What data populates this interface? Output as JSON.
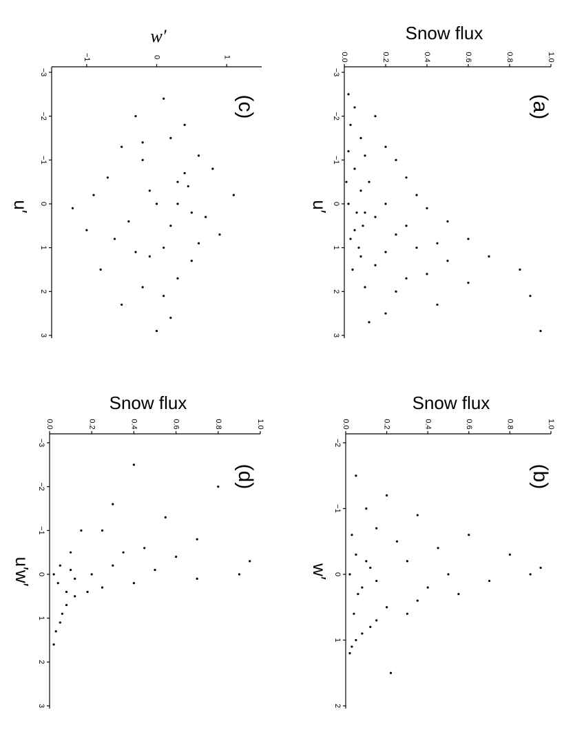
{
  "chart_data": [
    {
      "type": "scatter",
      "panel": "(a)",
      "x_label": "u′",
      "y_label": "Snow flux",
      "color": "#000000",
      "x": [
        -2.5,
        -2.2,
        -2,
        -1.8,
        -1.5,
        -1.3,
        -1.1,
        -1,
        -0.8,
        -0.6,
        -0.5,
        -0.3,
        -0.2,
        0,
        0,
        0.1,
        0.2,
        0.3,
        0.4,
        0.5,
        0.6,
        0.7,
        0.8,
        0.9,
        1,
        1.1,
        1.2,
        1.3,
        1.4,
        1.5,
        1.6,
        1.7,
        1.8,
        1.9,
        2,
        2.1,
        2.3,
        2.5,
        2.7,
        2.9,
        -0.5,
        0.2,
        0.8,
        1.2,
        1.5,
        -1.2,
        0.5,
        1.0
      ],
      "y": [
        0.02,
        0.05,
        0.15,
        0.03,
        0.08,
        0.2,
        0.1,
        0.25,
        0.05,
        0.3,
        0.12,
        0.08,
        0.35,
        0.02,
        0.2,
        0.4,
        0.1,
        0.15,
        0.5,
        0.3,
        0.05,
        0.25,
        0.6,
        0.45,
        0.35,
        0.2,
        0.7,
        0.5,
        0.15,
        0.85,
        0.4,
        0.3,
        0.6,
        0.1,
        0.25,
        0.9,
        0.45,
        0.2,
        0.12,
        0.95,
        0.01,
        0.06,
        0.03,
        0.08,
        0.04,
        0.02,
        0.09,
        0.07
      ],
      "xlim": [
        -3,
        3
      ],
      "ylim": [
        0,
        1
      ],
      "xticks": [
        {
          "value": -3,
          "label": "−3"
        },
        {
          "value": -2,
          "label": "−2"
        },
        {
          "value": -1,
          "label": "−1"
        },
        0,
        1,
        2,
        3
      ],
      "yticks": [
        {
          "value": 0,
          "label": "0.0"
        },
        {
          "value": 0.2,
          "label": "0.2"
        },
        {
          "value": 0.4,
          "label": "0.4"
        },
        {
          "value": 0.6,
          "label": "0.6"
        },
        {
          "value": 0.8,
          "label": "0.8"
        },
        {
          "value": 1,
          "label": "1.0"
        }
      ]
    },
    {
      "type": "scatter",
      "panel": "(b)",
      "x_label": "w′",
      "y_label": "Snow flux",
      "color": "#000000",
      "x": [
        -1.5,
        -1.2,
        -1,
        -0.9,
        -0.7,
        -0.6,
        -0.5,
        -0.4,
        -0.3,
        -0.2,
        -0.1,
        0,
        0,
        0.1,
        0.2,
        0.3,
        0.4,
        0.5,
        0.6,
        0.7,
        0.8,
        0.9,
        1,
        1.1,
        1.2,
        1.5,
        -0.3,
        0,
        0.3,
        -0.6,
        0.6,
        -0.2,
        0.2,
        0.1,
        -0.1
      ],
      "y": [
        0.05,
        0.2,
        0.1,
        0.35,
        0.15,
        0.6,
        0.25,
        0.45,
        0.8,
        0.3,
        0.95,
        0.5,
        0.9,
        0.7,
        0.4,
        0.55,
        0.35,
        0.2,
        0.3,
        0.15,
        0.12,
        0.08,
        0.05,
        0.03,
        0.02,
        0.22,
        0.05,
        0.02,
        0.06,
        0.03,
        0.04,
        0.1,
        0.08,
        0.15,
        0.12
      ],
      "xlim": [
        -2,
        2
      ],
      "ylim": [
        0,
        1
      ],
      "xticks": [
        {
          "value": -2,
          "label": "−2"
        },
        {
          "value": -1,
          "label": "−1"
        },
        0,
        1,
        2
      ],
      "yticks": [
        {
          "value": 0,
          "label": "0.0"
        },
        {
          "value": 0.2,
          "label": "0.2"
        },
        {
          "value": 0.4,
          "label": "0.4"
        },
        {
          "value": 0.6,
          "label": "0.6"
        },
        {
          "value": 0.8,
          "label": "0.8"
        },
        {
          "value": 1,
          "label": "1.0"
        }
      ]
    },
    {
      "type": "scatter",
      "panel": "(c)",
      "x_label": "u′",
      "y_label": "w′",
      "color": "#000000",
      "x": [
        -2.4,
        -2,
        -1.8,
        -1.5,
        -1.3,
        -1.1,
        -1,
        -0.8,
        -0.6,
        -0.5,
        -0.3,
        -0.2,
        0,
        0.1,
        0.2,
        0.4,
        0.5,
        0.7,
        0.8,
        1,
        1.1,
        1.3,
        1.5,
        1.7,
        1.9,
        2.1,
        2.3,
        2.6,
        2.9,
        -0.2,
        0.3,
        0.6,
        -0.7,
        0,
        1.2,
        -1.4,
        0.9,
        -0.4
      ],
      "y": [
        0.1,
        -0.3,
        0.4,
        0.2,
        -0.5,
        0.6,
        -0.2,
        0.8,
        -0.7,
        0.3,
        -0.1,
        1.1,
        0,
        -1.2,
        0.5,
        -0.4,
        0.2,
        0.9,
        -0.6,
        0.1,
        -0.3,
        0.5,
        -0.8,
        0.3,
        -0.2,
        0.1,
        -0.5,
        0.2,
        0,
        -0.9,
        0.7,
        -1,
        0.4,
        0.3,
        -0.1,
        -0.2,
        0.6,
        0.45
      ],
      "xlim": [
        -3,
        3
      ],
      "ylim": [
        -1.5,
        1.5
      ],
      "xticks": [
        {
          "value": -3,
          "label": "−3"
        },
        {
          "value": -2,
          "label": "−2"
        },
        {
          "value": -1,
          "label": "−1"
        },
        0,
        1,
        2,
        3
      ],
      "yticks": [
        {
          "value": -1,
          "label": "−1"
        },
        0,
        1
      ]
    },
    {
      "type": "scatter",
      "panel": "(d)",
      "x_label": "u′w′",
      "y_label": "Snow flux",
      "color": "#000000",
      "x": [
        -2.5,
        -2,
        -1.6,
        -1.3,
        -1,
        -0.8,
        -0.6,
        -0.5,
        -0.4,
        -0.3,
        -0.2,
        -0.1,
        0,
        0,
        0.1,
        0.2,
        0.3,
        0.4,
        0.5,
        0.7,
        0.9,
        1.1,
        1.3,
        1.6,
        -0.2,
        0,
        0.2,
        -0.5,
        0.4,
        -1,
        0.1,
        -0.1
      ],
      "y": [
        0.4,
        0.8,
        0.3,
        0.55,
        0.25,
        0.7,
        0.45,
        0.35,
        0.6,
        0.95,
        0.3,
        0.5,
        0.9,
        0.2,
        0.7,
        0.4,
        0.25,
        0.18,
        0.12,
        0.08,
        0.06,
        0.05,
        0.03,
        0.02,
        0.05,
        0.02,
        0.04,
        0.1,
        0.08,
        0.15,
        0.12,
        0.1
      ],
      "xlim": [
        -3,
        3
      ],
      "ylim": [
        0,
        1
      ],
      "xticks": [
        {
          "value": -3,
          "label": "−3"
        },
        {
          "value": -2,
          "label": "−2"
        },
        {
          "value": -1,
          "label": "−1"
        },
        0,
        1,
        2,
        3
      ],
      "yticks": [
        {
          "value": 0,
          "label": "0.0"
        },
        {
          "value": 0.2,
          "label": "0.2"
        },
        {
          "value": 0.4,
          "label": "0.4"
        },
        {
          "value": 0.6,
          "label": "0.6"
        },
        {
          "value": 0.8,
          "label": "0.8"
        },
        {
          "value": 1,
          "label": "1.0"
        }
      ]
    }
  ]
}
